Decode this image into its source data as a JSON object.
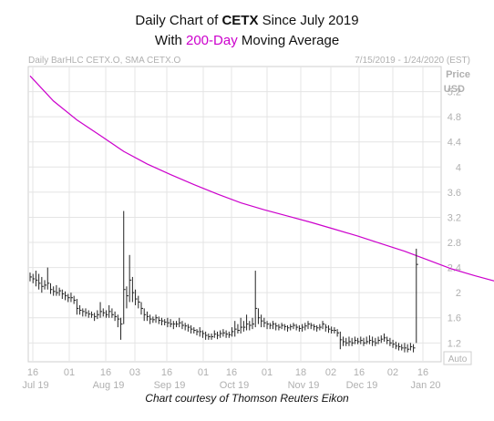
{
  "title": {
    "line1_prefix": "Daily Chart of ",
    "line1_ticker": "CETX",
    "line1_suffix": " Since July 2019",
    "line2_prefix": "With ",
    "line2_highlight": "200-Day",
    "line2_suffix": " Moving Average"
  },
  "header": {
    "left": "Daily BarHLC CETX.O, SMA CETX.O",
    "right": "7/15/2019 - 1/24/2020 (EST)"
  },
  "footer": "Chart courtesy of Thomson Reuters Eikon",
  "colors": {
    "bars": "#222222",
    "sma": "#cc00cc",
    "grid": "#e4e4e4",
    "axis_text": "#b0b0b0",
    "highlight": "#cc00cc"
  },
  "chart_data": {
    "type": "line",
    "ylabel": "Price",
    "yunit": "USD",
    "yticks": [
      1.2,
      1.6,
      2,
      2.4,
      2.8,
      3.2,
      3.6,
      4,
      4.4,
      4.8,
      5.2
    ],
    "ylim": [
      0.9,
      5.6
    ],
    "grid": true,
    "xticks": [
      {
        "day": "16",
        "month": "Jul 19"
      },
      {
        "day": "01",
        "month": ""
      },
      {
        "day": "16",
        "month": "Aug 19"
      },
      {
        "day": "03",
        "month": ""
      },
      {
        "day": "16",
        "month": "Sep 19"
      },
      {
        "day": "01",
        "month": ""
      },
      {
        "day": "16",
        "month": "Oct 19"
      },
      {
        "day": "01",
        "month": ""
      },
      {
        "day": "18",
        "month": "Nov 19"
      },
      {
        "day": "02",
        "month": ""
      },
      {
        "day": "16",
        "month": "Dec 19"
      },
      {
        "day": "02",
        "month": ""
      },
      {
        "day": "16",
        "month": "Jan 20"
      }
    ],
    "auto_label": "Auto",
    "series": [
      {
        "name": "SMA CETX.O",
        "kind": "sma",
        "points": [
          [
            0,
            5.45
          ],
          [
            8,
            5.05
          ],
          [
            16,
            4.75
          ],
          [
            24,
            4.5
          ],
          [
            32,
            4.25
          ],
          [
            40,
            4.05
          ],
          [
            48,
            3.88
          ],
          [
            56,
            3.72
          ],
          [
            64,
            3.57
          ],
          [
            72,
            3.43
          ],
          [
            80,
            3.32
          ],
          [
            88,
            3.22
          ],
          [
            96,
            3.12
          ],
          [
            104,
            3.01
          ],
          [
            112,
            2.9
          ],
          [
            120,
            2.78
          ],
          [
            128,
            2.66
          ],
          [
            136,
            2.52
          ],
          [
            144,
            2.38
          ],
          [
            152,
            2.27
          ],
          [
            160,
            2.17
          ],
          [
            168,
            2.07
          ],
          [
            176,
            1.99
          ],
          [
            181,
            1.92
          ]
        ]
      },
      {
        "name": "CETX.O",
        "kind": "hlc",
        "bars": [
          [
            0,
            2.32,
            2.18,
            2.25
          ],
          [
            1,
            2.3,
            2.15,
            2.22
          ],
          [
            2,
            2.35,
            2.1,
            2.2
          ],
          [
            3,
            2.3,
            2.05,
            2.15
          ],
          [
            4,
            2.25,
            2.0,
            2.1
          ],
          [
            5,
            2.2,
            2.05,
            2.12
          ],
          [
            6,
            2.4,
            2.05,
            2.15
          ],
          [
            7,
            2.15,
            1.98,
            2.05
          ],
          [
            8,
            2.1,
            1.95,
            2.02
          ],
          [
            9,
            2.12,
            1.95,
            2.0
          ],
          [
            10,
            2.08,
            1.95,
            2.03
          ],
          [
            11,
            2.05,
            1.9,
            1.98
          ],
          [
            12,
            2.02,
            1.88,
            1.95
          ],
          [
            13,
            1.98,
            1.85,
            1.92
          ],
          [
            14,
            2.0,
            1.85,
            1.92
          ],
          [
            15,
            1.95,
            1.82,
            1.88
          ],
          [
            16,
            1.9,
            1.65,
            1.75
          ],
          [
            17,
            1.8,
            1.65,
            1.72
          ],
          [
            18,
            1.75,
            1.62,
            1.7
          ],
          [
            19,
            1.75,
            1.62,
            1.68
          ],
          [
            20,
            1.72,
            1.6,
            1.66
          ],
          [
            21,
            1.7,
            1.6,
            1.65
          ],
          [
            22,
            1.68,
            1.55,
            1.62
          ],
          [
            23,
            1.72,
            1.58,
            1.65
          ],
          [
            24,
            1.85,
            1.6,
            1.7
          ],
          [
            25,
            1.75,
            1.62,
            1.68
          ],
          [
            26,
            1.72,
            1.6,
            1.65
          ],
          [
            27,
            1.8,
            1.6,
            1.7
          ],
          [
            28,
            1.75,
            1.6,
            1.65
          ],
          [
            29,
            1.7,
            1.55,
            1.62
          ],
          [
            30,
            1.65,
            1.45,
            1.58
          ],
          [
            31,
            1.6,
            1.25,
            1.5
          ],
          [
            32,
            3.3,
            1.5,
            2.05
          ],
          [
            33,
            2.1,
            1.75,
            1.95
          ],
          [
            34,
            2.6,
            1.85,
            2.2
          ],
          [
            35,
            2.25,
            1.85,
            2.0
          ],
          [
            36,
            2.05,
            1.8,
            1.9
          ],
          [
            37,
            1.95,
            1.75,
            1.85
          ],
          [
            38,
            1.85,
            1.65,
            1.75
          ],
          [
            39,
            1.75,
            1.55,
            1.65
          ],
          [
            40,
            1.7,
            1.55,
            1.62
          ],
          [
            41,
            1.65,
            1.5,
            1.58
          ],
          [
            42,
            1.62,
            1.52,
            1.57
          ],
          [
            43,
            1.65,
            1.52,
            1.6
          ],
          [
            44,
            1.62,
            1.5,
            1.56
          ],
          [
            45,
            1.6,
            1.48,
            1.55
          ],
          [
            46,
            1.58,
            1.48,
            1.53
          ],
          [
            47,
            1.6,
            1.45,
            1.52
          ],
          [
            48,
            1.58,
            1.45,
            1.5
          ],
          [
            49,
            1.55,
            1.42,
            1.5
          ],
          [
            50,
            1.55,
            1.45,
            1.5
          ],
          [
            51,
            1.6,
            1.45,
            1.52
          ],
          [
            52,
            1.55,
            1.42,
            1.48
          ],
          [
            53,
            1.52,
            1.4,
            1.47
          ],
          [
            54,
            1.5,
            1.38,
            1.45
          ],
          [
            55,
            1.48,
            1.35,
            1.42
          ],
          [
            56,
            1.45,
            1.35,
            1.4
          ],
          [
            57,
            1.42,
            1.32,
            1.38
          ],
          [
            58,
            1.45,
            1.3,
            1.38
          ],
          [
            59,
            1.4,
            1.28,
            1.35
          ],
          [
            60,
            1.38,
            1.25,
            1.32
          ],
          [
            61,
            1.35,
            1.25,
            1.3
          ],
          [
            62,
            1.35,
            1.25,
            1.3
          ],
          [
            63,
            1.4,
            1.28,
            1.34
          ],
          [
            64,
            1.38,
            1.26,
            1.32
          ],
          [
            65,
            1.4,
            1.28,
            1.35
          ],
          [
            66,
            1.42,
            1.3,
            1.36
          ],
          [
            67,
            1.4,
            1.28,
            1.34
          ],
          [
            68,
            1.38,
            1.28,
            1.33
          ],
          [
            69,
            1.45,
            1.3,
            1.38
          ],
          [
            70,
            1.55,
            1.3,
            1.42
          ],
          [
            71,
            1.5,
            1.35,
            1.4
          ],
          [
            72,
            1.6,
            1.35,
            1.45
          ],
          [
            73,
            1.55,
            1.38,
            1.45
          ],
          [
            74,
            1.65,
            1.4,
            1.5
          ],
          [
            75,
            1.55,
            1.4,
            1.48
          ],
          [
            76,
            1.6,
            1.42,
            1.5
          ],
          [
            77,
            2.35,
            1.45,
            1.75
          ],
          [
            78,
            1.75,
            1.5,
            1.6
          ],
          [
            79,
            1.65,
            1.45,
            1.55
          ],
          [
            80,
            1.6,
            1.45,
            1.52
          ],
          [
            81,
            1.55,
            1.42,
            1.5
          ],
          [
            82,
            1.52,
            1.42,
            1.48
          ],
          [
            83,
            1.55,
            1.42,
            1.5
          ],
          [
            84,
            1.52,
            1.4,
            1.47
          ],
          [
            85,
            1.5,
            1.4,
            1.45
          ],
          [
            86,
            1.52,
            1.42,
            1.48
          ],
          [
            87,
            1.5,
            1.4,
            1.46
          ],
          [
            88,
            1.48,
            1.38,
            1.44
          ],
          [
            89,
            1.5,
            1.4,
            1.46
          ],
          [
            90,
            1.52,
            1.42,
            1.48
          ],
          [
            91,
            1.5,
            1.4,
            1.45
          ],
          [
            92,
            1.48,
            1.38,
            1.43
          ],
          [
            93,
            1.5,
            1.38,
            1.45
          ],
          [
            94,
            1.52,
            1.4,
            1.47
          ],
          [
            95,
            1.55,
            1.42,
            1.5
          ],
          [
            96,
            1.52,
            1.42,
            1.48
          ],
          [
            97,
            1.5,
            1.4,
            1.46
          ],
          [
            98,
            1.48,
            1.38,
            1.44
          ],
          [
            99,
            1.5,
            1.4,
            1.45
          ],
          [
            100,
            1.55,
            1.42,
            1.5
          ],
          [
            101,
            1.5,
            1.38,
            1.45
          ],
          [
            102,
            1.48,
            1.36,
            1.42
          ],
          [
            103,
            1.46,
            1.35,
            1.4
          ],
          [
            104,
            1.45,
            1.35,
            1.4
          ],
          [
            105,
            1.42,
            1.3,
            1.36
          ],
          [
            106,
            1.38,
            1.1,
            1.25
          ],
          [
            107,
            1.3,
            1.15,
            1.22
          ],
          [
            108,
            1.28,
            1.15,
            1.2
          ],
          [
            109,
            1.3,
            1.15,
            1.22
          ],
          [
            110,
            1.28,
            1.15,
            1.2
          ],
          [
            111,
            1.3,
            1.18,
            1.24
          ],
          [
            112,
            1.28,
            1.18,
            1.22
          ],
          [
            113,
            1.3,
            1.18,
            1.24
          ],
          [
            114,
            1.28,
            1.15,
            1.2
          ],
          [
            115,
            1.3,
            1.18,
            1.22
          ],
          [
            116,
            1.32,
            1.18,
            1.24
          ],
          [
            117,
            1.3,
            1.15,
            1.22
          ],
          [
            118,
            1.28,
            1.15,
            1.2
          ],
          [
            119,
            1.3,
            1.18,
            1.24
          ],
          [
            120,
            1.32,
            1.2,
            1.26
          ],
          [
            121,
            1.35,
            1.22,
            1.28
          ],
          [
            122,
            1.3,
            1.18,
            1.24
          ],
          [
            123,
            1.28,
            1.15,
            1.2
          ],
          [
            124,
            1.25,
            1.12,
            1.18
          ],
          [
            125,
            1.22,
            1.1,
            1.15
          ],
          [
            126,
            1.2,
            1.08,
            1.14
          ],
          [
            127,
            1.18,
            1.08,
            1.12
          ],
          [
            128,
            1.2,
            1.05,
            1.12
          ],
          [
            129,
            1.18,
            1.05,
            1.1
          ],
          [
            130,
            1.2,
            1.08,
            1.14
          ],
          [
            131,
            1.18,
            1.05,
            1.12
          ],
          [
            132,
            2.7,
            1.2,
            2.45
          ]
        ]
      }
    ]
  }
}
